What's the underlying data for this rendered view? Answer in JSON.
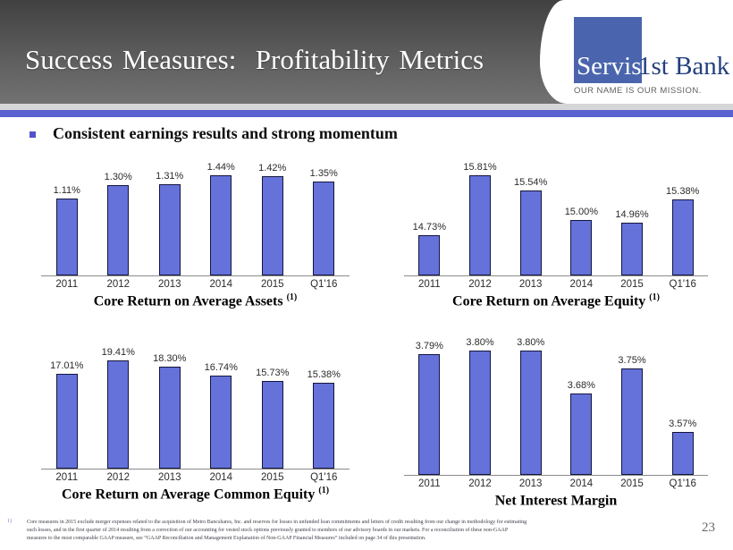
{
  "slide": {
    "title": "Success Measures:  Profitability Metrics",
    "bullet": "Consistent earnings results and strong momentum",
    "page_number": "23"
  },
  "logo": {
    "name_part1": "Servis",
    "name_part2": "1st Bank",
    "tagline": "OUR NAME IS OUR MISSION."
  },
  "footnote": {
    "marker": "1)",
    "text": "Core measures in 2015 exclude merger expenses related to the acquisition of Metro Bancshares, Inc. and reserves for losses in unfunded loan commitments and letters of credit resulting from our change in methodology for estimating such losses, and in the first quarter of 2014 resulting from a correction of our accounting for vested stock options previously granted to members of our advisory boards in our markets.  For a reconciliation of these non-GAAP measures to the most comparable GAAP measure, see “GAAP Reconciliation and Management Explanation of Non-GAAP Financial Measures” included on page 34 of this presentation."
  },
  "colors": {
    "bar_fill": "#6472da",
    "bar_border": "#15153d",
    "accent_stripe_blue": "#5a62d2",
    "stripe_gray": "#d6d6d9",
    "logo_square_blue": "#4a65ad",
    "logo_text_navy": "#23407e",
    "bullet_square": "#5353cc"
  },
  "chart_data": [
    {
      "type": "bar",
      "title": "Core Return on Average Assets",
      "title_sup": "(1)",
      "categories": [
        "2011",
        "2012",
        "2013",
        "2014",
        "2015",
        "Q1'16"
      ],
      "values": [
        1.11,
        1.3,
        1.31,
        1.44,
        1.42,
        1.35
      ],
      "labels": [
        "1.11%",
        "1.30%",
        "1.31%",
        "1.44%",
        "1.42%",
        "1.35%"
      ],
      "xlabel": "",
      "ylabel": "",
      "ylim": [
        0,
        1.67
      ],
      "grid": false,
      "legend": "none"
    },
    {
      "type": "bar",
      "title": "Core Return on Average Equity",
      "title_sup": "(1)",
      "categories": [
        "2011",
        "2012",
        "2013",
        "2014",
        "2015",
        "Q1'16"
      ],
      "values": [
        14.73,
        15.81,
        15.54,
        15.0,
        14.96,
        15.38
      ],
      "labels": [
        "14.73%",
        "15.81%",
        "15.54%",
        "15.00%",
        "14.96%",
        "15.38%"
      ],
      "xlabel": "",
      "ylabel": "",
      "ylim": [
        14.0,
        16.1
      ],
      "grid": false,
      "legend": "none"
    },
    {
      "type": "bar",
      "title": "Core Return on Average Common Equity",
      "title_sup": "(1)",
      "categories": [
        "2011",
        "2012",
        "2013",
        "2014",
        "2015",
        "Q1'16"
      ],
      "values": [
        17.01,
        19.41,
        18.3,
        16.74,
        15.73,
        15.38
      ],
      "labels": [
        "17.01%",
        "19.41%",
        "18.30%",
        "16.74%",
        "15.73%",
        "15.38%"
      ],
      "xlabel": "",
      "ylabel": "",
      "ylim": [
        0,
        20.85
      ],
      "grid": false,
      "legend": "none"
    },
    {
      "type": "bar",
      "title": "Net Interest Margin",
      "title_sup": "",
      "categories": [
        "2011",
        "2012",
        "2013",
        "2014",
        "2015",
        "Q1'16"
      ],
      "values": [
        3.79,
        3.8,
        3.8,
        3.68,
        3.75,
        3.57
      ],
      "labels": [
        "3.79%",
        "3.80%",
        "3.80%",
        "3.68%",
        "3.75%",
        "3.57%"
      ],
      "xlabel": "",
      "ylabel": "",
      "ylim": [
        3.45,
        3.84
      ],
      "grid": false,
      "legend": "none"
    }
  ]
}
